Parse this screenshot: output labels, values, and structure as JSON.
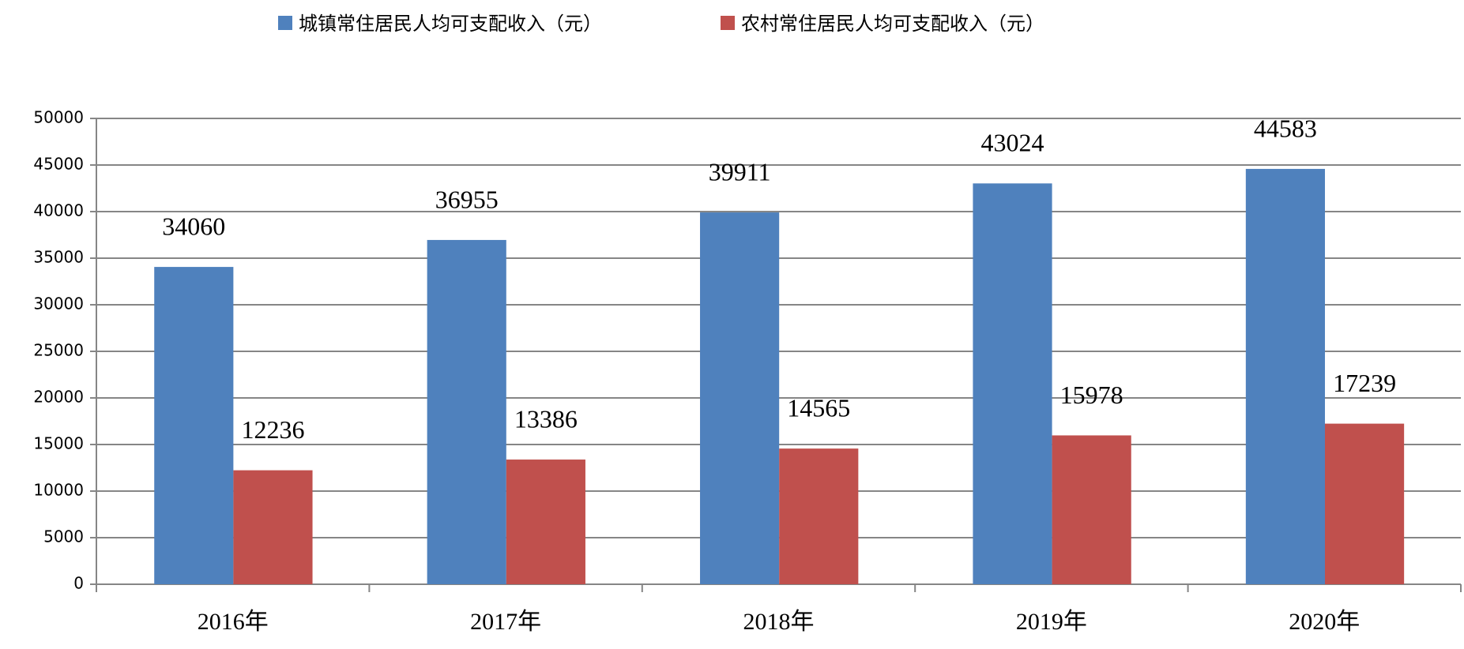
{
  "chart_data": {
    "type": "bar",
    "categories": [
      "2016年",
      "2017年",
      "2018年",
      "2019年",
      "2020年"
    ],
    "series": [
      {
        "name": "城镇常住居民人均可支配收入（元）",
        "color": "#4f81bd",
        "values": [
          34060,
          36955,
          39911,
          43024,
          44583
        ]
      },
      {
        "name": "农村常住居民人均可支配收入（元）",
        "color": "#c0504d",
        "values": [
          12236,
          13386,
          14565,
          15978,
          17239
        ]
      }
    ],
    "ylim": [
      0,
      50000
    ],
    "yticks": [
      0,
      5000,
      10000,
      15000,
      20000,
      25000,
      30000,
      35000,
      40000,
      45000,
      50000
    ],
    "grid": true,
    "legend": "top"
  }
}
